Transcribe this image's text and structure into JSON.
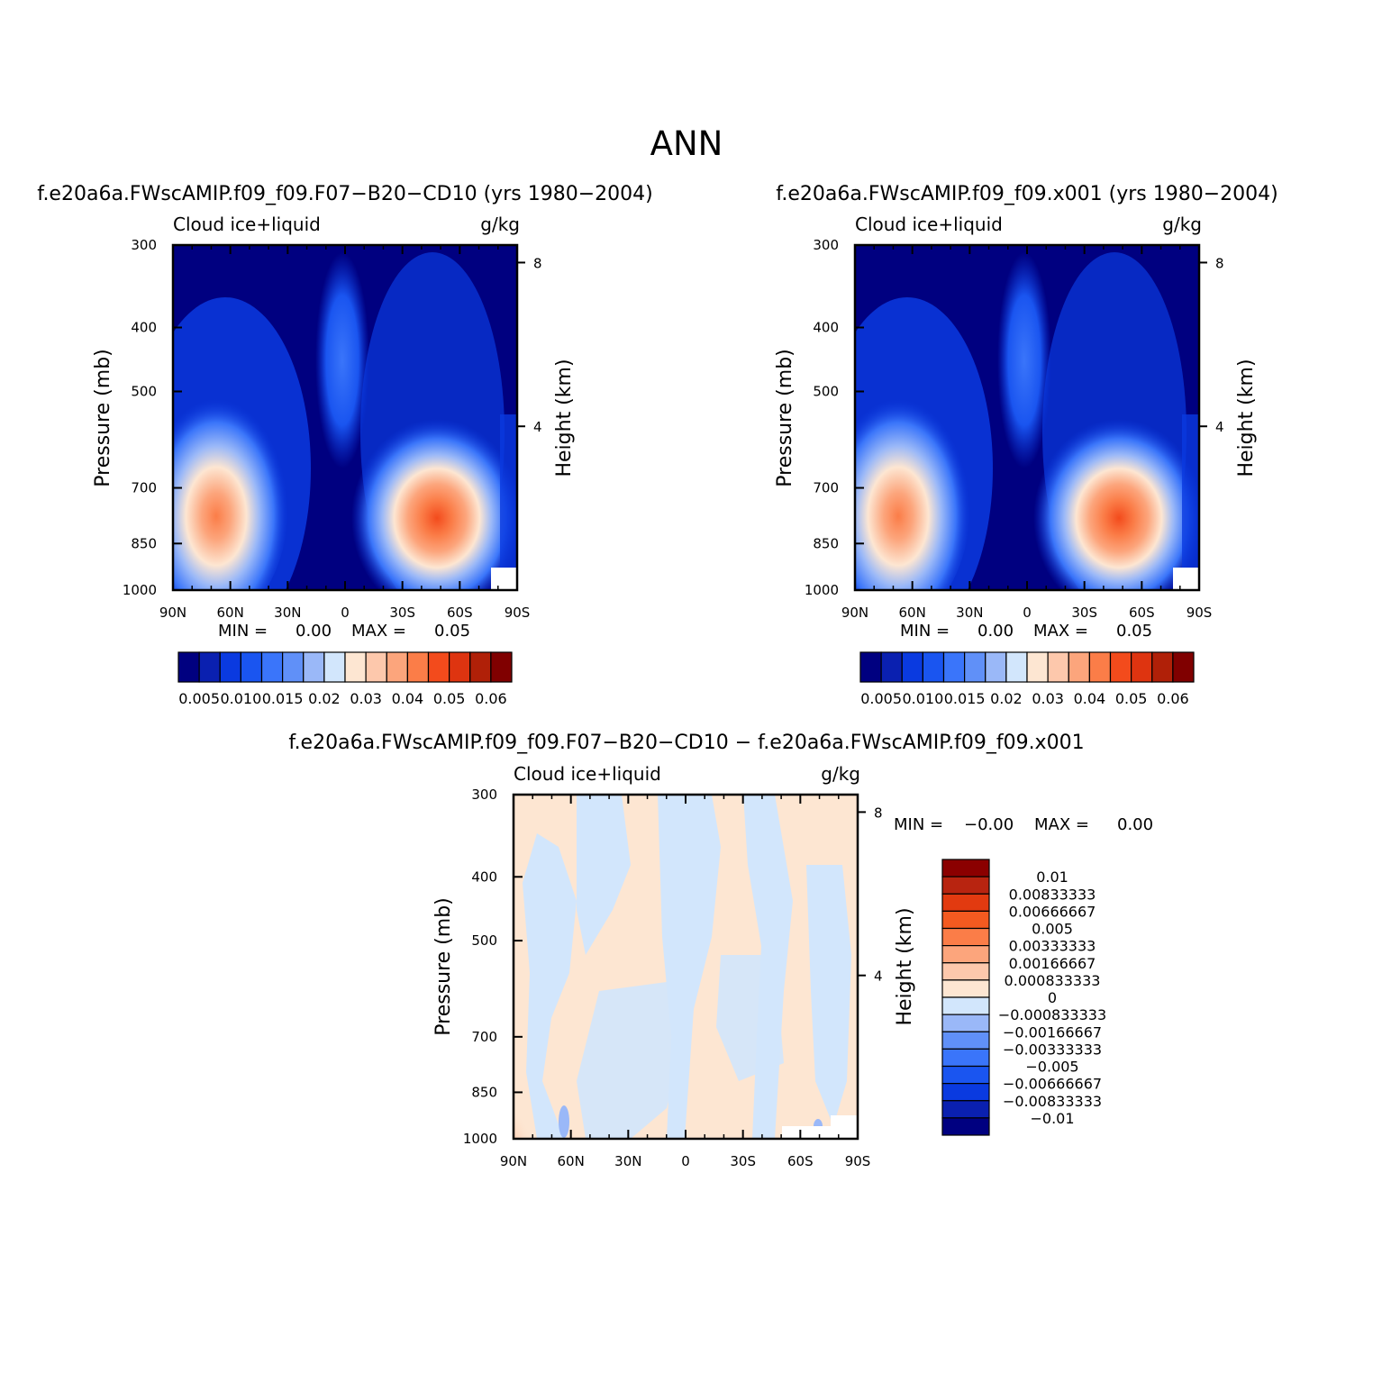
{
  "main_title": "ANN",
  "panels": [
    {
      "title": "f.e20a6a.FWscAMIP.f09_f09.F07−B20−CD10 (yrs 1980−2004)",
      "variable": "Cloud ice+liquid",
      "units": "g/kg",
      "min_text": "MIN =",
      "min_value": "0.00",
      "max_text": "MAX =",
      "max_value": "0.05"
    },
    {
      "title": "f.e20a6a.FWscAMIP.f09_f09.x001 (yrs 1980−2004)",
      "variable": "Cloud ice+liquid",
      "units": "g/kg",
      "min_text": "MIN =",
      "min_value": "0.00",
      "max_text": "MAX =",
      "max_value": "0.05"
    },
    {
      "title": "f.e20a6a.FWscAMIP.f09_f09.F07−B20−CD10 − f.e20a6a.FWscAMIP.f09_f09.x001",
      "variable": "Cloud ice+liquid",
      "units": "g/kg",
      "min_text": "MIN =",
      "min_value": "−0.00",
      "max_text": "MAX =",
      "max_value": "0.00"
    }
  ],
  "axes": {
    "x_ticks": [
      "90N",
      "60N",
      "30N",
      "0",
      "30S",
      "60S",
      "90S"
    ],
    "y_ticks": [
      "300",
      "400",
      "500",
      "700",
      "850",
      "1000"
    ],
    "y_label": "Pressure (mb)",
    "y2_label": "Height (km)",
    "y2_ticks": [
      "8",
      "4"
    ]
  },
  "colorbar_abs": {
    "colors": [
      "#000080",
      "#0a20b0",
      "#0a3ae0",
      "#1a55f0",
      "#3a75fa",
      "#6090f8",
      "#9ab8f8",
      "#d2e6fc",
      "#fde6d2",
      "#fdc8ac",
      "#fca57c",
      "#fb7d48",
      "#f34b1c",
      "#de3410",
      "#b02008",
      "#800000"
    ],
    "labels": [
      "0.005",
      "0.010",
      "0.015",
      "0.02",
      "0.03",
      "0.04",
      "0.05",
      "0.06"
    ]
  },
  "colorbar_diff": {
    "colors": [
      "#8b0000",
      "#b82410",
      "#e23a10",
      "#f45a20",
      "#fb7d48",
      "#fca57c",
      "#fdc8ac",
      "#fde6d2",
      "#d2e6fc",
      "#9ab8f8",
      "#6090f8",
      "#3a75fa",
      "#1a55f0",
      "#0a3ae0",
      "#0a20b0",
      "#000080"
    ],
    "labels": [
      "0.01",
      "0.00833333",
      "0.00666667",
      "0.005",
      "0.00333333",
      "0.00166667",
      "0.000833333",
      "0",
      "−0.000833333",
      "−0.00166667",
      "−0.00333333",
      "−0.005",
      "−0.00666667",
      "−0.00833333",
      "−0.01"
    ]
  },
  "chart_data": [
    {
      "type": "heatmap",
      "title": "f.e20a6a.FWscAMIP.f09_f09.F07−B20−CD10 (yrs 1980−2004)",
      "xlabel": "",
      "ylabel": "Pressure (mb)",
      "x_categories": [
        "90N",
        "60N",
        "30N",
        "0",
        "30S",
        "60S",
        "90S"
      ],
      "y_levels_mb": [
        300,
        400,
        500,
        700,
        850,
        1000
      ],
      "value_range": [
        0.0,
        0.05
      ],
      "features": [
        {
          "lat": "60N",
          "pressure_mb": 850,
          "value": 0.035
        },
        {
          "lat": "60S",
          "pressure_mb": 850,
          "value": 0.05
        },
        {
          "lat": "0",
          "pressure_mb": 500,
          "value": 0.01
        }
      ]
    },
    {
      "type": "heatmap",
      "title": "f.e20a6a.FWscAMIP.f09_f09.x001 (yrs 1980−2004)",
      "xlabel": "",
      "ylabel": "Pressure (mb)",
      "x_categories": [
        "90N",
        "60N",
        "30N",
        "0",
        "30S",
        "60S",
        "90S"
      ],
      "y_levels_mb": [
        300,
        400,
        500,
        700,
        850,
        1000
      ],
      "value_range": [
        0.0,
        0.05
      ],
      "features": [
        {
          "lat": "60N",
          "pressure_mb": 850,
          "value": 0.035
        },
        {
          "lat": "60S",
          "pressure_mb": 850,
          "value": 0.05
        },
        {
          "lat": "0",
          "pressure_mb": 500,
          "value": 0.01
        }
      ]
    },
    {
      "type": "heatmap",
      "title": "f.e20a6a.FWscAMIP.f09_f09.F07−B20−CD10 − f.e20a6a.FWscAMIP.f09_f09.x001",
      "xlabel": "",
      "ylabel": "Pressure (mb)",
      "x_categories": [
        "90N",
        "60N",
        "30N",
        "0",
        "30S",
        "60S",
        "90S"
      ],
      "y_levels_mb": [
        300,
        400,
        500,
        700,
        850,
        1000
      ],
      "value_range": [
        -0.0,
        0.0
      ],
      "features": [
        {
          "lat": "90N",
          "pressure_mb": 1000,
          "value": 0.002
        }
      ]
    }
  ]
}
